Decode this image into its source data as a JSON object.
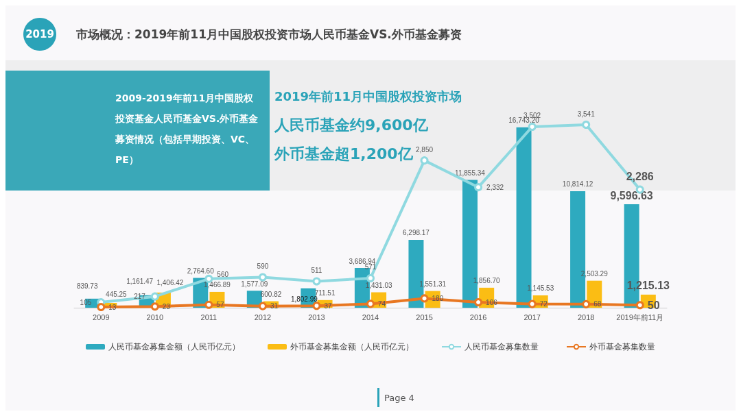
{
  "chart_data": {
    "type": "bar",
    "title": "市场概况：2019年前11月中国股权投资市场人民币基金VS.外币基金募资",
    "subtitle": "2009-2019年前11月中国股权投资基金人民币基金VS.外币基金募资情况（包括早期投资、VC、PE）",
    "annotations": [
      "2019",
      "2019年前11月中国股权投资市场",
      "人民币基金约9,600亿",
      "外币基金超1,200亿",
      "Page 4"
    ],
    "categories": [
      "2009",
      "2010",
      "2011",
      "2012",
      "2013",
      "2014",
      "2015",
      "2016",
      "2017",
      "2018",
      "2019年前11月"
    ],
    "series": [
      {
        "name": "人民币基金募集金额（人民币亿元）",
        "color": "#2eaabf",
        "values": [
          839.73,
          1161.47,
          2764.6,
          1577.09,
          1802.99,
          3686.94,
          6298.17,
          11855.34,
          16743.2,
          10814.12,
          9596.63
        ],
        "value_labels": [
          "839.73",
          "1,161.47",
          "2,764.60",
          "1,577.09",
          "1,802.99",
          "3,686.94",
          "6,298.17",
          "11,855.34",
          "16,743.20",
          "10,814.12",
          "9,596.63"
        ]
      },
      {
        "name": "外币基金募集金额（人民币亿元）",
        "color": "#fbbd14",
        "values": [
          445.25,
          1406.42,
          1466.89,
          600.82,
          711.51,
          1431.03,
          1551.31,
          1856.7,
          1145.53,
          2503.29,
          1215.13
        ],
        "value_labels": [
          "445.25",
          "1,406.42",
          "1,466.89",
          "600.82",
          "711.51",
          "1,431.03",
          "1,551.31",
          "1,856.70",
          "1,145.53",
          "2,503.29",
          "1,215.13"
        ]
      },
      {
        "name": "人民币基金募集数量",
        "type": "line",
        "axis": "y2",
        "color": "#8fd9e0",
        "values": [
          105,
          217,
          560,
          590,
          511,
          571,
          2850,
          2332,
          3502,
          3541,
          2286
        ],
        "value_labels": [
          "105",
          "217",
          "560",
          "590",
          "511",
          "571",
          "2,850",
          "2,332",
          "3,502",
          "3,541",
          "2,286"
        ]
      },
      {
        "name": "外币基金募集数量",
        "type": "line",
        "axis": "y2",
        "color": "#e87722",
        "values": [
          13,
          23,
          57,
          31,
          37,
          74,
          180,
          106,
          72,
          68,
          50
        ],
        "value_labels": [
          "13",
          "23",
          "57",
          "31",
          "37",
          "74",
          "180",
          "106",
          "72",
          "68",
          "50"
        ]
      }
    ],
    "legend": "bottom",
    "marker": "circle",
    "grid": false,
    "tick_labels": "x"
  }
}
